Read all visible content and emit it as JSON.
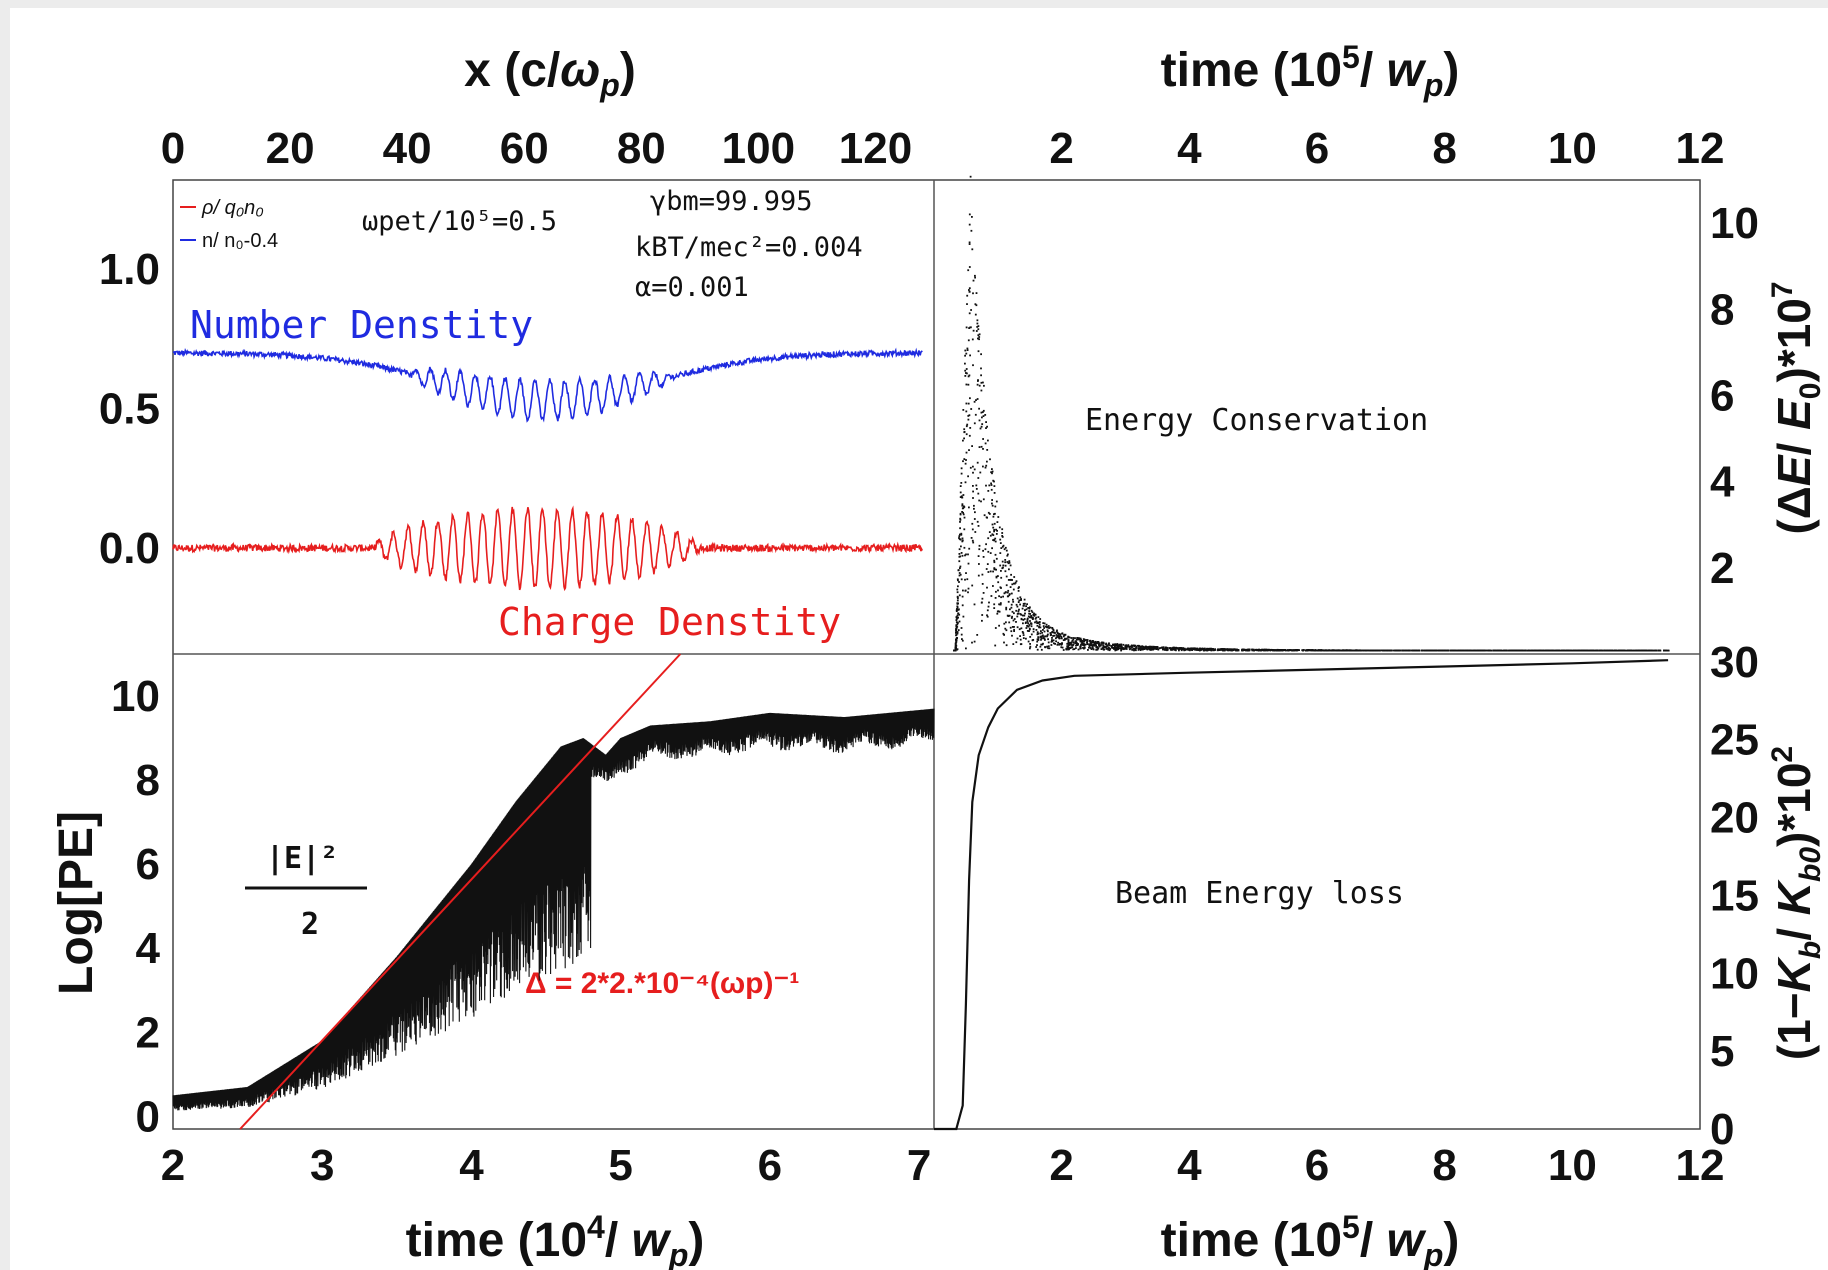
{
  "chart_data": [
    {
      "id": "density",
      "type": "line",
      "xlabel": "x (c/ωp)",
      "x_ticks": [
        "0",
        "20",
        "40",
        "60",
        "80",
        "100",
        "120"
      ],
      "y_ticks": [
        "0.0",
        "0.5",
        "1.0"
      ],
      "xlim": [
        0,
        130
      ],
      "ylim": [
        -0.38,
        1.32
      ],
      "legend": [
        "ρ/ q₀n₀",
        "n/ n₀-0.4"
      ],
      "legend_position": "top-left",
      "annotations": [
        "ωpet/10⁵=0.5",
        "γbm=99.995",
        "kBT/mec²=0.004",
        "α=0.001"
      ],
      "series": [
        {
          "name": "Number Denstity",
          "color": "#1f2be0",
          "baseline": 0.7,
          "dip_center": 64,
          "dip_depth": 0.17,
          "oscillation_start": 40,
          "oscillation_end": 85,
          "amplitude": 0.07
        },
        {
          "name": "Charge Denstity",
          "color": "#e61e1e",
          "baseline": 0.0,
          "oscillation_start": 34,
          "oscillation_end": 90,
          "amplitude": 0.14
        }
      ]
    },
    {
      "id": "energy-conservation",
      "type": "scatter",
      "title": "Energy Conservation",
      "xlabel": "time (10⁵/ wp)",
      "ylabel": "(ΔE/ E₀)*10⁷",
      "x_ticks": [
        "2",
        "4",
        "6",
        "8",
        "10",
        "12"
      ],
      "y_ticks": [
        "2",
        "4",
        "6",
        "8",
        "10"
      ],
      "xlim": [
        0,
        12
      ],
      "ylim": [
        0,
        11
      ],
      "peak": {
        "x": 0.55,
        "y": 10.5
      },
      "x_end": 11.5
    },
    {
      "id": "potential-energy",
      "type": "line",
      "xlabel": "time (10⁴/ wp)",
      "ylabel": "Log[PE]",
      "x_ticks": [
        "2",
        "3",
        "4",
        "5",
        "6",
        "7"
      ],
      "y_ticks": [
        "0",
        "2",
        "4",
        "6",
        "8",
        "10"
      ],
      "xlim": [
        2,
        7.1
      ],
      "ylim": [
        -0.3,
        11
      ],
      "label_fraction_num": "|E|²",
      "label_fraction_den": "2",
      "fit_label": "Δ = 2*2.*10⁻⁴(ωp)⁻¹",
      "fit_line": {
        "x": [
          2.45,
          5.4
        ],
        "y": [
          -0.3,
          11
        ]
      },
      "envelope": [
        [
          2.0,
          0.5
        ],
        [
          2.5,
          0.7
        ],
        [
          3.0,
          1.8
        ],
        [
          3.5,
          3.8
        ],
        [
          4.0,
          6.0
        ],
        [
          4.3,
          7.5
        ],
        [
          4.6,
          8.8
        ],
        [
          4.75,
          9.0
        ],
        [
          4.9,
          8.6
        ],
        [
          5.0,
          9.0
        ],
        [
          5.2,
          9.3
        ],
        [
          5.6,
          9.4
        ],
        [
          5.8,
          9.5
        ],
        [
          6.0,
          9.6
        ],
        [
          6.5,
          9.5
        ],
        [
          7.1,
          9.7
        ]
      ]
    },
    {
      "id": "beam-energy-loss",
      "type": "line",
      "title": "Beam Energy loss",
      "xlabel": "time (10⁵/ wp)",
      "ylabel": "(1−Kb/ Kb0)*10²",
      "x_ticks": [
        "2",
        "4",
        "6",
        "8",
        "10",
        "12"
      ],
      "y_ticks": [
        "0",
        "5",
        "10",
        "15",
        "20",
        "25",
        "30"
      ],
      "xlim": [
        0,
        12
      ],
      "ylim": [
        0,
        30.5
      ],
      "points": [
        [
          0,
          0
        ],
        [
          0.35,
          0
        ],
        [
          0.45,
          1.5
        ],
        [
          0.5,
          8
        ],
        [
          0.55,
          16
        ],
        [
          0.6,
          21
        ],
        [
          0.7,
          24
        ],
        [
          0.85,
          25.8
        ],
        [
          1.0,
          27
        ],
        [
          1.3,
          28.2
        ],
        [
          1.7,
          28.8
        ],
        [
          2.2,
          29.1
        ],
        [
          4,
          29.3
        ],
        [
          6,
          29.5
        ],
        [
          8,
          29.7
        ],
        [
          10,
          29.9
        ],
        [
          11.5,
          30.1
        ]
      ]
    }
  ]
}
